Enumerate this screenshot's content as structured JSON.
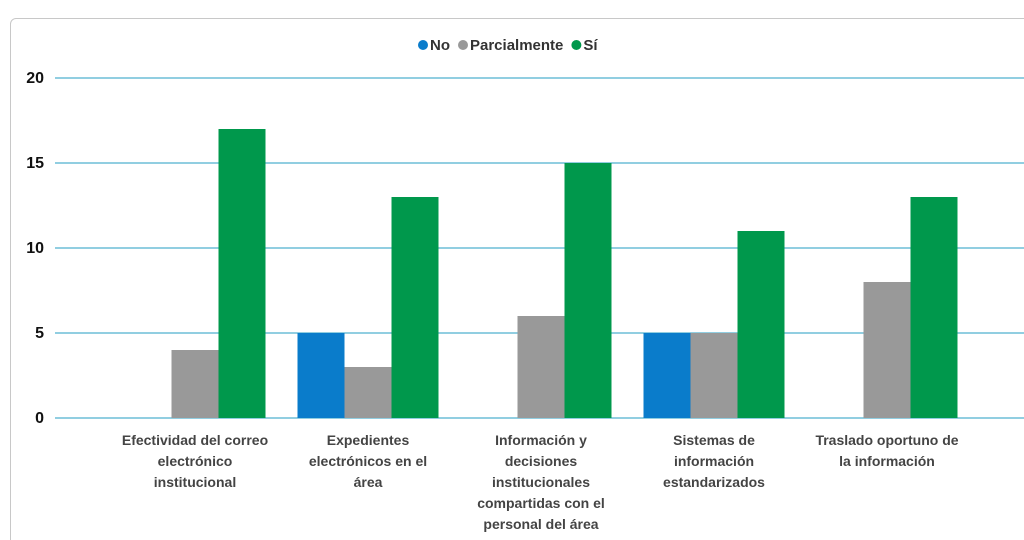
{
  "chart_data": {
    "type": "bar",
    "categories": [
      "Efectividad del correo electrónico institucional",
      "Expedientes electrónicos en el área",
      "Información y decisiones institucionales compartidas con el personal del área",
      "Sistemas de información estandarizados",
      "Traslado oportuno de la información"
    ],
    "series": [
      {
        "name": "No",
        "color": "#0a7ccb",
        "values": [
          0,
          5,
          0,
          5,
          0
        ]
      },
      {
        "name": "Parcialmente",
        "color": "#999999",
        "values": [
          4,
          3,
          6,
          5,
          8
        ]
      },
      {
        "name": "Sí",
        "color": "#00984c",
        "values": [
          17,
          13,
          15,
          11,
          13
        ]
      }
    ],
    "ylim": [
      0,
      20
    ],
    "yticks": [
      0,
      5,
      10,
      15,
      20
    ],
    "grid": true,
    "legend": "top"
  }
}
